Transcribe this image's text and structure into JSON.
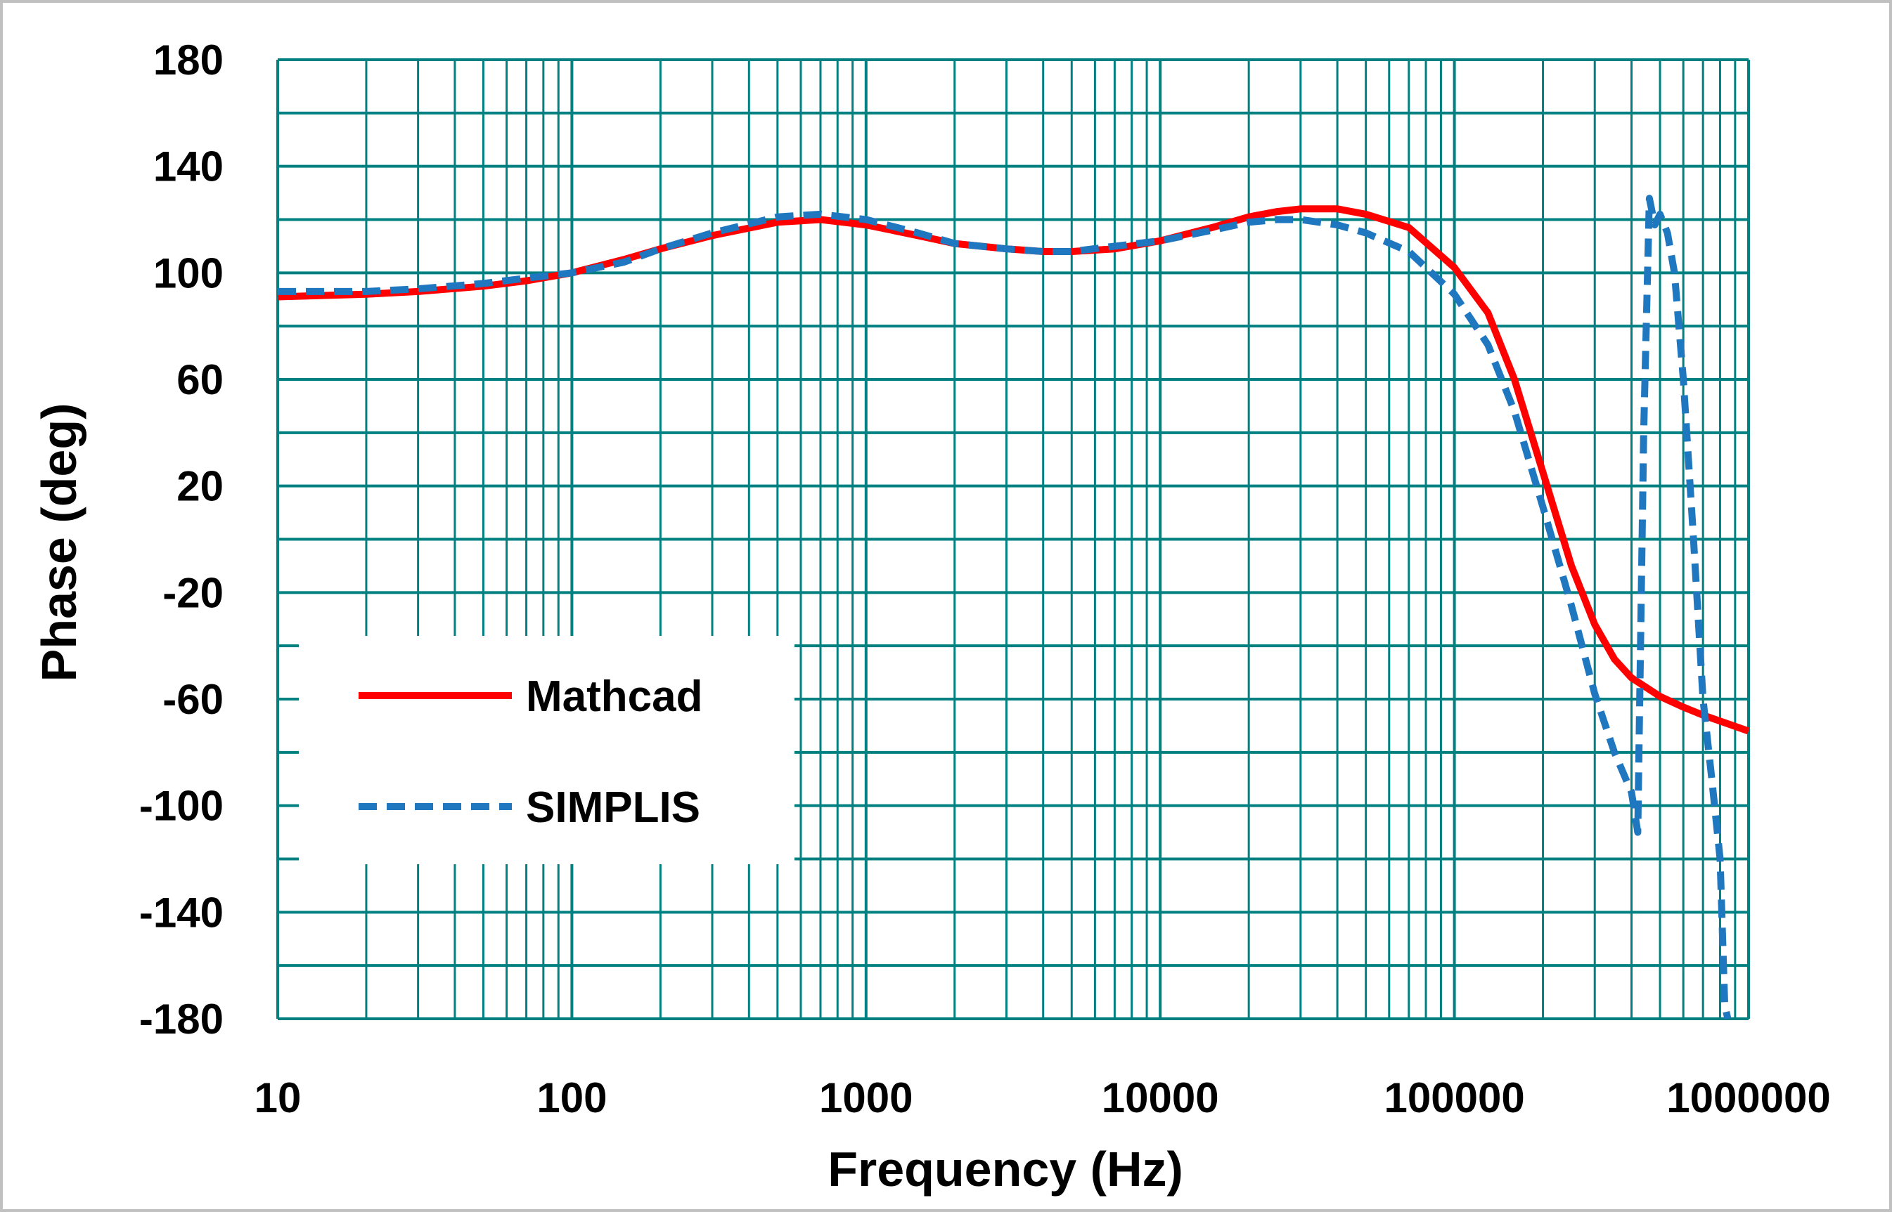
{
  "chart_data": {
    "type": "line",
    "xlabel": "Frequency (Hz)",
    "ylabel": "Phase (deg)",
    "xscale": "log",
    "xlim": [
      10,
      1000000
    ],
    "ylim": [
      -180,
      180
    ],
    "x_ticks": [
      "10",
      "100",
      "1000",
      "10000",
      "100000",
      "1000000"
    ],
    "y_ticks": [
      "180",
      "140",
      "100",
      "60",
      "20",
      "-20",
      "-60",
      "-100",
      "-140",
      "-180"
    ],
    "grid": true,
    "legend_position": "lower-left",
    "colors": {
      "grid": "#008080",
      "frame": "#c0c0c0",
      "mathcad": "#ff0000",
      "simplis": "#1f77c0"
    },
    "series": [
      {
        "name": "Mathcad",
        "style": "solid",
        "x": [
          10,
          20,
          30,
          50,
          70,
          100,
          150,
          200,
          300,
          500,
          700,
          1000,
          1500,
          2000,
          3000,
          4000,
          5000,
          7000,
          10000,
          15000,
          20000,
          25000,
          30000,
          40000,
          50000,
          70000,
          100000,
          130000,
          160000,
          200000,
          250000,
          300000,
          350000,
          400000,
          500000,
          600000,
          700000,
          1000000
        ],
        "y": [
          91,
          92,
          93,
          95,
          97,
          100,
          105,
          109,
          114,
          119,
          120,
          118,
          114,
          111,
          109,
          108,
          108,
          109,
          112,
          117,
          121,
          123,
          124,
          124,
          122,
          117,
          102,
          85,
          60,
          25,
          -10,
          -32,
          -45,
          -52,
          -59,
          -63,
          -66,
          -72
        ]
      },
      {
        "name": "SIMPLIS",
        "style": "dashed",
        "x": [
          10,
          20,
          30,
          50,
          70,
          100,
          150,
          200,
          300,
          500,
          700,
          1000,
          1500,
          2000,
          3000,
          4000,
          5000,
          7000,
          10000,
          15000,
          20000,
          25000,
          30000,
          40000,
          50000,
          70000,
          100000,
          130000,
          160000,
          200000,
          250000,
          300000,
          350000,
          400000,
          420000,
          440000,
          460000,
          480000,
          500000,
          530000,
          560000,
          600000,
          650000,
          700000,
          750000,
          800000,
          830000,
          850000
        ],
        "y": [
          93,
          93,
          94,
          96,
          98,
          100,
          104,
          109,
          115,
          121,
          122,
          120,
          115,
          111,
          109,
          108,
          108,
          110,
          112,
          116,
          119,
          120,
          120,
          118,
          115,
          108,
          92,
          73,
          48,
          12,
          -25,
          -58,
          -80,
          -95,
          -110,
          40,
          128,
          118,
          122,
          115,
          100,
          60,
          0,
          -60,
          -90,
          -120,
          -175,
          -180
        ]
      }
    ]
  }
}
